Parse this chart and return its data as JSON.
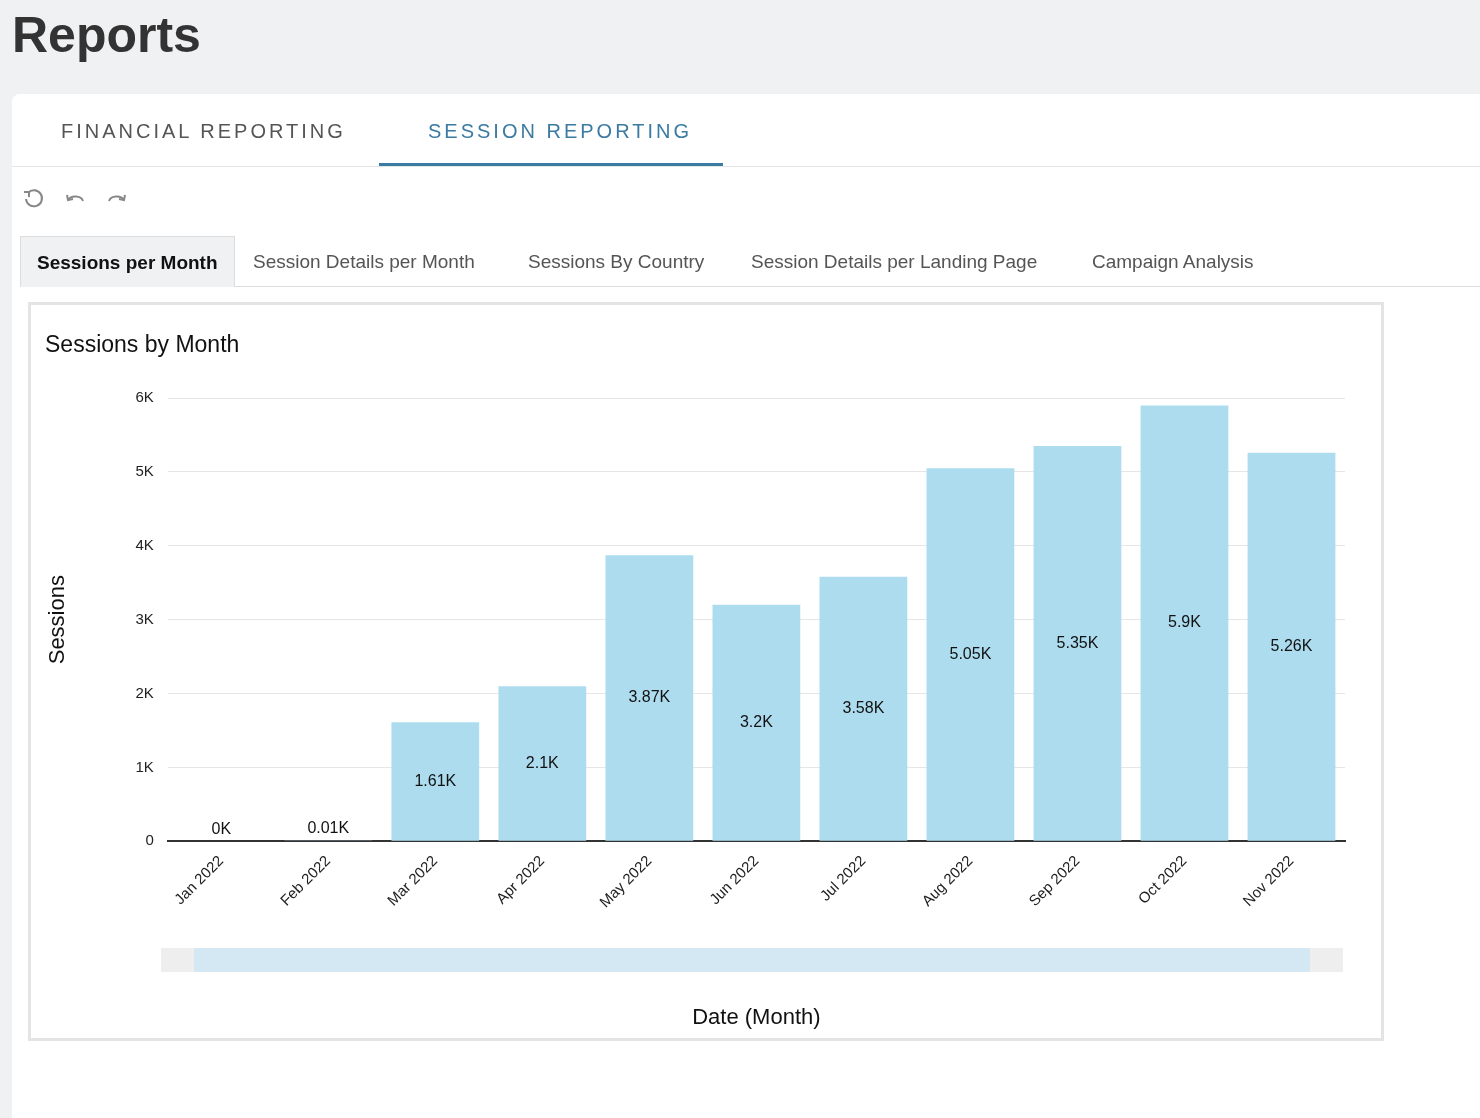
{
  "chart_data": {
    "type": "bar",
    "title": "Sessions by Month",
    "xlabel": "Date (Month)",
    "ylabel": "Sessions",
    "categories": [
      "Jan 2022",
      "Feb 2022",
      "Mar 2022",
      "Apr 2022",
      "May 2022",
      "Jun 2022",
      "Jul 2022",
      "Aug 2022",
      "Sep 2022",
      "Oct 2022",
      "Nov 2022"
    ],
    "values": [
      0,
      10,
      1610,
      2100,
      3870,
      3200,
      3580,
      5050,
      5350,
      5900,
      5260
    ],
    "value_labels": [
      "0K",
      "0.01K",
      "1.61K",
      "2.1K",
      "3.87K",
      "3.2K",
      "3.58K",
      "5.05K",
      "5.35K",
      "5.9K",
      "5.26K"
    ],
    "color": "#acdcee",
    "ylim": [
      0,
      6000
    ],
    "yticks": [
      0,
      {
        "value": 1000,
        "label": "1K"
      },
      {
        "value": 2000,
        "label": "2K"
      },
      {
        "value": 3000,
        "label": "3K"
      },
      {
        "value": 4000,
        "label": "4K"
      },
      {
        "value": 5000,
        "label": "5K"
      },
      {
        "value": 6000,
        "label": "6K"
      }
    ],
    "grid": "y",
    "legend": false,
    "annotations": [
      "Reports",
      "FINANCIAL REPORTING",
      "SESSION REPORTING",
      "Sessions per Month",
      "Session Details per Month",
      "Sessions By Country",
      "Session Details per Landing Page",
      "Campaign Analysis"
    ]
  }
}
